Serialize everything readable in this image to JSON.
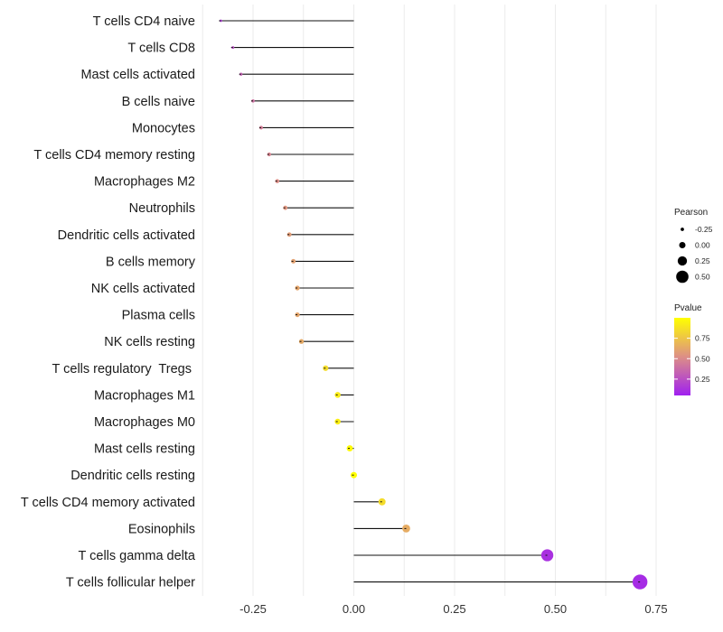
{
  "chart_data": {
    "type": "lollipop",
    "title": "",
    "xlabel": "",
    "ylabel": "",
    "xlim": [
      -0.375,
      0.8
    ],
    "xticks": [
      -0.25,
      0.0,
      0.25,
      0.5,
      0.75
    ],
    "xtick_labels": [
      "-0.25",
      "0.00",
      "0.25",
      "0.50",
      "0.75"
    ],
    "categories": [
      "T cells CD4 naive",
      "T cells CD8",
      "Mast cells activated",
      "B cells naive",
      "Monocytes",
      "T cells CD4 memory resting",
      "Macrophages M2",
      "Neutrophils",
      "Dendritic cells activated",
      "B cells memory",
      "NK cells activated",
      "Plasma cells",
      "NK cells resting",
      "T cells regulatory  Tregs ",
      "Macrophages M1",
      "Macrophages M0",
      "Mast cells resting",
      "Dendritic cells resting",
      "T cells CD4 memory activated",
      "Eosinophils",
      "T cells gamma delta",
      "T cells follicular helper"
    ],
    "pearson": [
      -0.33,
      -0.3,
      -0.28,
      -0.25,
      -0.23,
      -0.21,
      -0.19,
      -0.17,
      -0.16,
      -0.15,
      -0.14,
      -0.14,
      -0.13,
      -0.07,
      -0.04,
      -0.04,
      -0.01,
      0.0,
      0.07,
      0.13,
      0.48,
      0.71
    ],
    "pvalue": [
      0.15,
      0.25,
      0.32,
      0.4,
      0.45,
      0.48,
      0.52,
      0.55,
      0.58,
      0.6,
      0.62,
      0.62,
      0.64,
      0.85,
      0.92,
      0.93,
      0.98,
      1.0,
      0.85,
      0.65,
      0.12,
      0.1
    ],
    "legend": {
      "size_title": "Pearson",
      "size_values": [
        -0.25,
        0.0,
        0.25,
        0.5
      ],
      "size_labels": [
        "-0.25",
        "0.00",
        "0.25",
        "0.50"
      ],
      "color_title": "Pvalue",
      "color_ticks": [
        0.25,
        0.5,
        0.75
      ],
      "color_labels": [
        "0.25",
        "0.50",
        "0.75"
      ],
      "color_range": [
        0.05,
        1.0
      ],
      "placement": "right"
    },
    "colors": {
      "low_pvalue": "#a020f0",
      "mid_pvalue": "#dd8f86",
      "high_pvalue": "#ffff00",
      "stem": "#111111",
      "grid": "#ebebeb"
    }
  }
}
